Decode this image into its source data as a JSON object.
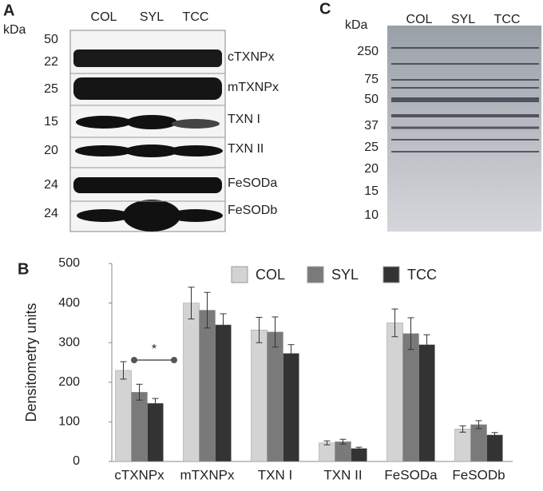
{
  "panel_a": {
    "letter": "A",
    "unit": "kDa",
    "lanes": [
      "COL",
      "SYL",
      "TCC"
    ],
    "markers": [
      50,
      22,
      25,
      15,
      20,
      24,
      24
    ],
    "proteins": [
      "cTXNPx",
      "mTXNPx",
      "TXN I",
      "TXN II",
      "FeSODa",
      "FeSODb"
    ]
  },
  "panel_c": {
    "letter": "C",
    "unit": "kDa",
    "lanes": [
      "COL",
      "SYL",
      "TCC"
    ],
    "markers": [
      250,
      75,
      50,
      37,
      25,
      20,
      15,
      10
    ]
  },
  "chart_data": {
    "type": "bar",
    "letter": "B",
    "ylabel": "Densitometry units",
    "categories": [
      "cTXNPx",
      "mTXNPx",
      "TXN I",
      "TXN II",
      "FeSODa",
      "FeSODb"
    ],
    "series": [
      {
        "name": "COL",
        "color": "#d3d3d3",
        "values": [
          230,
          400,
          332,
          47,
          350,
          82
        ],
        "errors": [
          22,
          40,
          32,
          5,
          35,
          8
        ]
      },
      {
        "name": "SYL",
        "color": "#7a7a7a",
        "values": [
          175,
          382,
          327,
          50,
          323,
          93
        ],
        "errors": [
          20,
          45,
          38,
          6,
          40,
          10
        ]
      },
      {
        "name": "TCC",
        "color": "#333333",
        "values": [
          147,
          345,
          273,
          33,
          295,
          67
        ],
        "errors": [
          12,
          28,
          22,
          3,
          25,
          6
        ]
      }
    ],
    "ylim": [
      0,
      500
    ],
    "yticks": [
      0,
      100,
      200,
      300,
      400,
      500
    ],
    "annotation": "*"
  }
}
